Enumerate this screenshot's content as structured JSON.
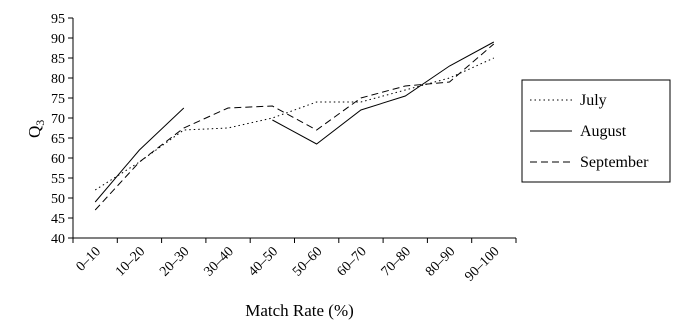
{
  "chart_data": {
    "type": "line",
    "title": "",
    "xlabel": "Match Rate (%)",
    "ylabel": "Q",
    "ylabel_subscript": "3",
    "categories": [
      "0–10",
      "10–20",
      "20–30",
      "30–40",
      "40–50",
      "50–60",
      "60–70",
      "70–80",
      "80–90",
      "90–100"
    ],
    "ylim": [
      40,
      95
    ],
    "yticks": [
      40,
      45,
      50,
      55,
      60,
      65,
      70,
      75,
      80,
      85,
      90,
      95
    ],
    "grid": false,
    "legend_position": "right",
    "series": [
      {
        "name": "July",
        "style": "dotted",
        "values": [
          52,
          59,
          67,
          67.5,
          70,
          74,
          74,
          77,
          80,
          85
        ]
      },
      {
        "name": "August",
        "style": "solid",
        "values": [
          49,
          62,
          72.5,
          null,
          69.5,
          63.5,
          72,
          75.5,
          83,
          89
        ]
      },
      {
        "name": "September",
        "style": "dashed",
        "values": [
          47,
          59,
          67.5,
          72.5,
          73,
          67,
          75,
          78,
          79,
          88.5
        ]
      }
    ],
    "colors": {
      "line": "#000000",
      "axis": "#000000",
      "background": "#ffffff"
    }
  }
}
